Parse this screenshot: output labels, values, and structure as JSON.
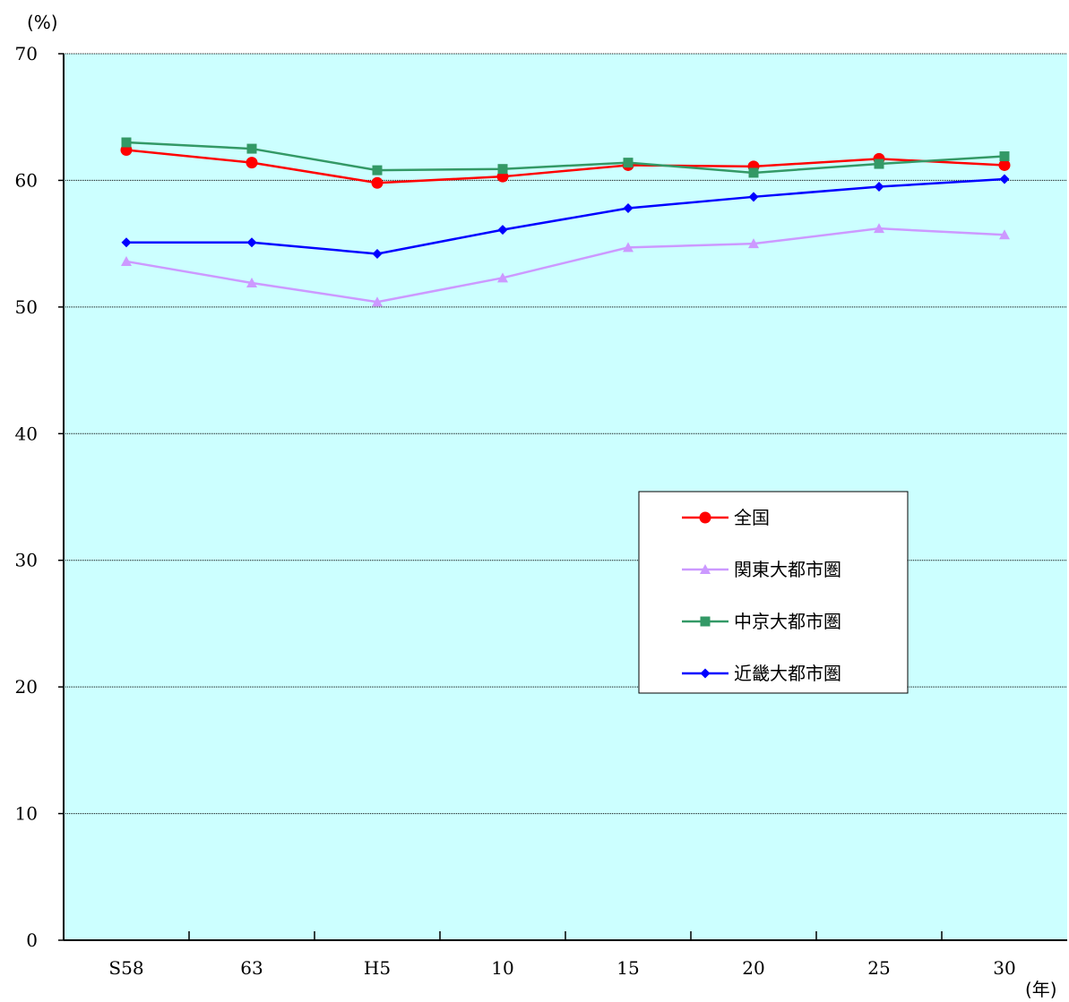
{
  "chart_data": {
    "type": "line",
    "y_unit": "(%)",
    "x_unit": "(年)",
    "categories": [
      "S58",
      "63",
      "H5",
      "10",
      "15",
      "20",
      "25",
      "30"
    ],
    "ylim": [
      0,
      70
    ],
    "y_ticks": [
      0,
      10,
      20,
      30,
      40,
      50,
      60,
      70
    ],
    "grid": true,
    "plot_background": "#ccffff",
    "legend_position": "right-middle",
    "series": [
      {
        "name": "全国",
        "color": "#ff0000",
        "marker": "circle",
        "values": [
          62.4,
          61.4,
          59.8,
          60.3,
          61.2,
          61.1,
          61.7,
          61.2
        ]
      },
      {
        "name": "関東大都市圏",
        "color": "#cc99ff",
        "marker": "triangle",
        "values": [
          53.6,
          51.9,
          50.4,
          52.3,
          54.7,
          55.0,
          56.2,
          55.7
        ]
      },
      {
        "name": "中京大都市圏",
        "color": "#339966",
        "marker": "square",
        "values": [
          63.0,
          62.5,
          60.8,
          60.9,
          61.4,
          60.6,
          61.3,
          61.9
        ]
      },
      {
        "name": "近畿大都市圏",
        "color": "#0000ff",
        "marker": "diamond",
        "values": [
          55.1,
          55.1,
          54.2,
          56.1,
          57.8,
          58.7,
          59.5,
          60.1
        ]
      }
    ]
  }
}
